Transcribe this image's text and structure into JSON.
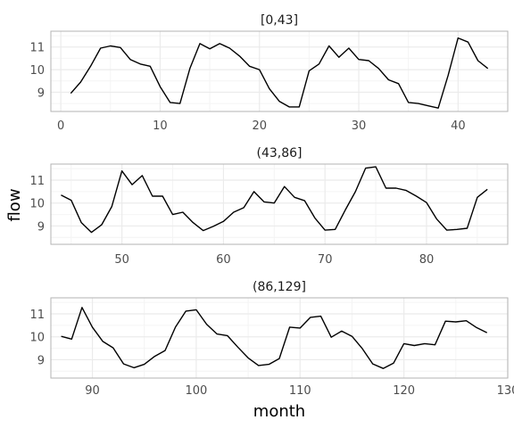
{
  "chart_data": {
    "type": "line",
    "xlabel": "month",
    "ylabel": "flow",
    "colors": {
      "line": "#000000",
      "grid_major": "#ebebeb",
      "grid_minor": "#f4f4f4",
      "frame": "#b3b3b3"
    },
    "panels": [
      {
        "label": "[0,43]",
        "xlim": [
          -1,
          45
        ],
        "ylim": [
          8.15,
          11.7
        ],
        "xticks": [
          0,
          10,
          20,
          30,
          40
        ],
        "yticks": [
          9,
          10,
          11
        ],
        "x": [
          1,
          2,
          3,
          4,
          5,
          6,
          7,
          8,
          9,
          10,
          11,
          12,
          13,
          14,
          15,
          16,
          17,
          18,
          19,
          20,
          21,
          22,
          23,
          24,
          25,
          26,
          27,
          28,
          29,
          30,
          31,
          32,
          33,
          34,
          35,
          36,
          37,
          38,
          39,
          40,
          41,
          42,
          43
        ],
        "y": [
          8.95,
          9.45,
          10.15,
          10.95,
          11.05,
          10.98,
          10.45,
          10.25,
          10.15,
          9.25,
          8.55,
          8.5,
          10.05,
          11.15,
          10.92,
          11.15,
          10.95,
          10.6,
          10.15,
          10.0,
          9.15,
          8.6,
          8.35,
          8.35,
          9.95,
          10.25,
          11.05,
          10.55,
          10.95,
          10.45,
          10.4,
          10.05,
          9.55,
          9.38,
          8.55,
          8.5,
          8.4,
          8.3,
          9.75,
          11.4,
          11.22,
          10.4,
          10.05
        ]
      },
      {
        "label": "(43,86]",
        "xlim": [
          43,
          88
        ],
        "ylim": [
          8.2,
          11.7
        ],
        "xticks": [
          50,
          60,
          70,
          80
        ],
        "yticks": [
          9,
          10,
          11
        ],
        "x": [
          44,
          45,
          46,
          47,
          48,
          49,
          50,
          51,
          52,
          53,
          54,
          55,
          56,
          57,
          58,
          59,
          60,
          61,
          62,
          63,
          64,
          65,
          66,
          67,
          68,
          69,
          70,
          71,
          72,
          73,
          74,
          75,
          76,
          77,
          78,
          79,
          80,
          81,
          82,
          83,
          84,
          85,
          86
        ],
        "y": [
          10.35,
          10.12,
          9.15,
          8.72,
          9.05,
          9.85,
          11.4,
          10.8,
          11.2,
          10.3,
          10.3,
          9.5,
          9.6,
          9.15,
          8.8,
          8.98,
          9.2,
          9.6,
          9.8,
          10.5,
          10.05,
          10.0,
          10.72,
          10.25,
          10.1,
          9.35,
          8.82,
          8.85,
          9.7,
          10.5,
          11.52,
          11.58,
          10.65,
          10.65,
          10.55,
          10.3,
          10.02,
          9.3,
          8.82,
          8.85,
          8.9,
          10.25,
          10.6
        ]
      },
      {
        "label": "(86,129]",
        "xlim": [
          86,
          130
        ],
        "ylim": [
          8.2,
          11.7
        ],
        "xticks": [
          90,
          100,
          110,
          120,
          130
        ],
        "yticks": [
          9,
          10,
          11
        ],
        "x": [
          87,
          88,
          89,
          90,
          91,
          92,
          93,
          94,
          95,
          96,
          97,
          98,
          99,
          100,
          101,
          102,
          103,
          104,
          105,
          106,
          107,
          108,
          109,
          110,
          111,
          112,
          113,
          114,
          115,
          116,
          117,
          118,
          119,
          120,
          121,
          122,
          123,
          124,
          125,
          126,
          127,
          128
        ],
        "y": [
          10.02,
          9.9,
          11.28,
          10.42,
          9.8,
          9.52,
          8.82,
          8.65,
          8.8,
          9.15,
          9.4,
          10.42,
          11.12,
          11.18,
          10.55,
          10.12,
          10.05,
          9.55,
          9.08,
          8.75,
          8.8,
          9.05,
          10.42,
          10.38,
          10.85,
          10.9,
          9.98,
          10.25,
          10.02,
          9.48,
          8.82,
          8.62,
          8.85,
          9.7,
          9.62,
          9.7,
          9.65,
          10.68,
          10.65,
          10.7,
          10.4,
          10.18
        ]
      }
    ]
  }
}
